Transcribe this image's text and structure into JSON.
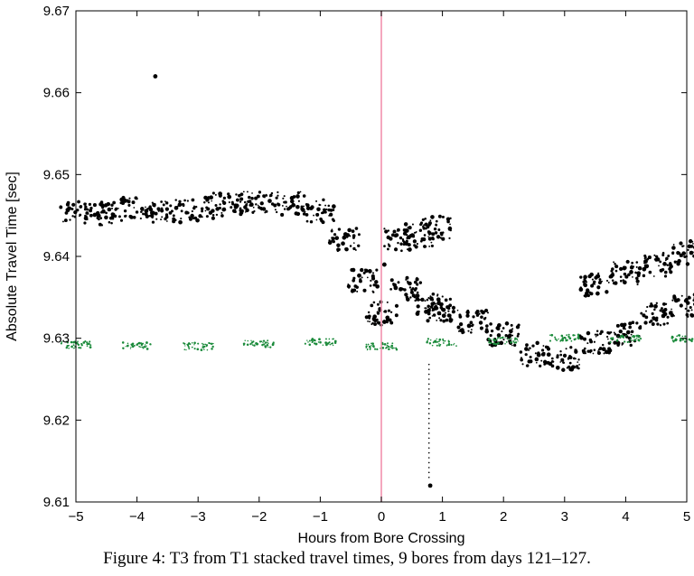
{
  "chart_data": {
    "type": "scatter",
    "xlabel": "Hours from Bore Crossing",
    "ylabel": "Absolute Travel Time [sec]",
    "xlim": [
      -5,
      5
    ],
    "ylim": [
      9.61,
      9.67
    ],
    "x_ticks": [
      -5,
      -4,
      -3,
      -2,
      -1,
      0,
      1,
      2,
      3,
      4,
      5
    ],
    "y_ticks": [
      9.61,
      9.62,
      9.63,
      9.64,
      9.65,
      9.66,
      9.67
    ],
    "y_tick_labels": [
      "9.61",
      "9.62",
      "9.63",
      "9.64",
      "9.65",
      "9.66",
      "9.67"
    ],
    "grid": false,
    "vline": {
      "x": 0,
      "color": "#f08aa8"
    },
    "series": [
      {
        "color": "#000000",
        "band_points": [
          {
            "x": -5.0,
            "y": 9.6455
          },
          {
            "x": -4.5,
            "y": 9.6452
          },
          {
            "x": -4.0,
            "y": 9.6458
          },
          {
            "x": -3.5,
            "y": 9.6455
          },
          {
            "x": -3.0,
            "y": 9.6458
          },
          {
            "x": -2.5,
            "y": 9.6463
          },
          {
            "x": -2.0,
            "y": 9.6465
          },
          {
            "x": -1.5,
            "y": 9.6465
          },
          {
            "x": -1.0,
            "y": 9.6455
          },
          {
            "x": -0.6,
            "y": 9.642
          },
          {
            "x": -0.3,
            "y": 9.637
          },
          {
            "x": 0.0,
            "y": 9.633
          },
          {
            "x": 0.3,
            "y": 9.642
          },
          {
            "x": 0.6,
            "y": 9.6425
          },
          {
            "x": 0.9,
            "y": 9.6435
          },
          {
            "x": 0.4,
            "y": 9.636
          },
          {
            "x": 0.8,
            "y": 9.634
          },
          {
            "x": 1.0,
            "y": 9.6335
          },
          {
            "x": 1.5,
            "y": 9.632
          },
          {
            "x": 2.0,
            "y": 9.6305
          },
          {
            "x": 2.5,
            "y": 9.628
          },
          {
            "x": 3.0,
            "y": 9.6275
          },
          {
            "x": 3.5,
            "y": 9.6295
          },
          {
            "x": 4.0,
            "y": 9.6305
          },
          {
            "x": 4.5,
            "y": 9.633
          },
          {
            "x": 5.0,
            "y": 9.634
          },
          {
            "x": 3.5,
            "y": 9.6365
          },
          {
            "x": 4.0,
            "y": 9.638
          },
          {
            "x": 4.5,
            "y": 9.639
          },
          {
            "x": 5.0,
            "y": 9.6405
          }
        ],
        "outliers": [
          {
            "x": -3.7,
            "y": 9.662
          },
          {
            "x": 0.8,
            "y": 9.612
          },
          {
            "x": 0.05,
            "y": 9.639
          },
          {
            "x": 0.05,
            "y": 9.632
          }
        ]
      },
      {
        "color": "#1a8a3a",
        "band_points": [
          {
            "x": -5.0,
            "y": 9.6292
          },
          {
            "x": -4.0,
            "y": 9.6291
          },
          {
            "x": -3.0,
            "y": 9.629
          },
          {
            "x": -2.0,
            "y": 9.6293
          },
          {
            "x": -1.0,
            "y": 9.6295
          },
          {
            "x": 0.0,
            "y": 9.629
          },
          {
            "x": 1.0,
            "y": 9.6295
          },
          {
            "x": 2.0,
            "y": 9.6297
          },
          {
            "x": 3.0,
            "y": 9.63
          },
          {
            "x": 4.0,
            "y": 9.6299
          },
          {
            "x": 5.0,
            "y": 9.63
          }
        ]
      }
    ]
  },
  "caption": "Figure 4:  T3 from T1 stacked travel times, 9 bores from days 121–127."
}
